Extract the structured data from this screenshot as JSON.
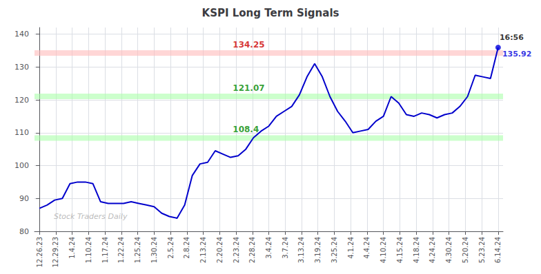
{
  "chart_data": {
    "type": "line",
    "title": "KSPI Long Term Signals",
    "watermark": "Stock Traders Daily",
    "color": "#0000cc",
    "grid": true,
    "xlim": [
      -0.3,
      28.3
    ],
    "xticks": [
      {
        "value": 0,
        "label": "12.26.23"
      },
      {
        "value": 1,
        "label": "12.29.23"
      },
      {
        "value": 2,
        "label": "1.4.24"
      },
      {
        "value": 3,
        "label": "1.10.24"
      },
      {
        "value": 4,
        "label": "1.17.24"
      },
      {
        "value": 5,
        "label": "1.22.24"
      },
      {
        "value": 6,
        "label": "1.25.24"
      },
      {
        "value": 7,
        "label": "1.30.24"
      },
      {
        "value": 8,
        "label": "2.5.24"
      },
      {
        "value": 9,
        "label": "2.8.24"
      },
      {
        "value": 10,
        "label": "2.13.24"
      },
      {
        "value": 11,
        "label": "2.20.24"
      },
      {
        "value": 12,
        "label": "2.23.24"
      },
      {
        "value": 13,
        "label": "2.28.24"
      },
      {
        "value": 14,
        "label": "3.4.24"
      },
      {
        "value": 15,
        "label": "3.7.24"
      },
      {
        "value": 16,
        "label": "3.13.24"
      },
      {
        "value": 17,
        "label": "3.19.24"
      },
      {
        "value": 18,
        "label": "3.25.24"
      },
      {
        "value": 19,
        "label": "4.1.24"
      },
      {
        "value": 20,
        "label": "4.4.24"
      },
      {
        "value": 21,
        "label": "4.10.24"
      },
      {
        "value": 22,
        "label": "4.15.24"
      },
      {
        "value": 23,
        "label": "4.18.24"
      },
      {
        "value": 24,
        "label": "4.24.24"
      },
      {
        "value": 25,
        "label": "4.30.24"
      },
      {
        "value": 26,
        "label": "5.20.24"
      },
      {
        "value": 27,
        "label": "5.23.24"
      },
      {
        "value": 28,
        "label": "6.14.24"
      }
    ],
    "ylim": [
      80,
      142
    ],
    "yticks": [
      80,
      90,
      100,
      110,
      120,
      130,
      140
    ],
    "x": [
      0,
      0.4666666666666667,
      0.9333333333333333,
      1.4,
      1.8666666666666667,
      2.3333333333333335,
      2.8,
      3.2666666666666666,
      3.7333333333333334,
      4.2,
      4.666666666666667,
      5.133333333333333,
      5.6,
      6.066666666666666,
      6.533333333333333,
      7,
      7.466666666666667,
      7.933333333333334,
      8.4,
      8.866666666666667,
      9.333333333333334,
      9.8,
      10.266666666666667,
      10.733333333333333,
      11.2,
      11.666666666666666,
      12.133333333333333,
      12.6,
      13.066666666666666,
      13.533333333333333,
      14,
      14.466666666666667,
      14.933333333333334,
      15.4,
      15.866666666666667,
      16.333333333333332,
      16.8,
      17.266666666666666,
      17.733333333333334,
      18.2,
      18.666666666666668,
      19.133333333333333,
      19.6,
      20.066666666666666,
      20.533333333333335,
      21,
      21.466666666666665,
      21.933333333333334,
      22.4,
      22.866666666666667,
      23.333333333333332,
      23.8,
      24.266666666666666,
      24.733333333333334,
      25.2,
      25.666666666666668,
      26.133333333333333,
      26.6,
      27.066666666666666,
      27.533333333333335,
      28
    ],
    "values": [
      87.0,
      88.0,
      89.5,
      90.0,
      94.5,
      95.0,
      95.0,
      94.5,
      89.0,
      88.5,
      88.5,
      88.5,
      89.0,
      88.5,
      88.0,
      87.5,
      85.5,
      84.5,
      84.0,
      88.0,
      97.0,
      100.5,
      101.0,
      104.5,
      103.5,
      102.5,
      103.0,
      105.0,
      108.5,
      110.5,
      112.0,
      115.0,
      116.5,
      118.0,
      121.5,
      127.0,
      131.0,
      127.0,
      121.0,
      116.5,
      113.5,
      110.0,
      110.5,
      111.0,
      113.5,
      115.0,
      121.0,
      119.0,
      115.5,
      115.0,
      116.0,
      115.5,
      114.5,
      115.5,
      116.0,
      118.0,
      121.0,
      127.5,
      127.0,
      126.5,
      135.92
    ],
    "reference_lines": [
      {
        "value": 134.25,
        "label": "134.25",
        "color": "#ffbbbb",
        "label_color": "#cc0000"
      },
      {
        "value": 121.07,
        "label": "121.07",
        "color": "#aaffaa",
        "label_color": "#008800"
      },
      {
        "value": 108.4,
        "label": "108.4",
        "color": "#aaffaa",
        "label_color": "#008800"
      }
    ],
    "last_time": "16:56",
    "last_price": 135.92,
    "last_color": "#0000dd"
  }
}
